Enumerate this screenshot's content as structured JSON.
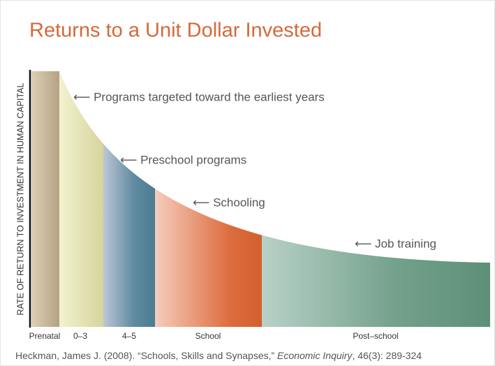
{
  "title": "Returns to a Unit Dollar Invested",
  "y_axis_label": "RATE OF RETURN TO INVESTMENT IN HUMAN CAPITAL",
  "annotations": [
    "⟵ Programs targeted toward the earliest years",
    "⟵ Preschool programs",
    "⟵ Schooling",
    "⟵ Job training"
  ],
  "segments": [
    "Prenatal",
    "0–3",
    "4–5",
    "School",
    "Post–school"
  ],
  "citation": {
    "before": "Heckman, James J. (2008). “Schools, Skills and Synapses,” ",
    "journal": "Economic Inquiry",
    "after": ", 46(3): 289-324"
  }
}
